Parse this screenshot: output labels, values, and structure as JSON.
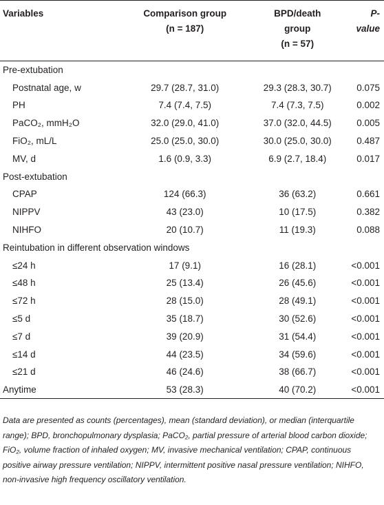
{
  "table": {
    "header": [
      [
        "Variables"
      ],
      [
        "Comparison group",
        "(n = 187)"
      ],
      [
        "BPD/death",
        "group",
        "(n = 57)"
      ],
      [
        "P-value"
      ]
    ],
    "groups": [
      {
        "title": "Pre-extubation",
        "rows": [
          [
            "Postnatal age, w",
            "29.7 (28.7, 31.0)",
            "29.3 (28.3, 30.7)",
            "0.075"
          ],
          [
            "PH",
            "7.4 (7.4, 7.5)",
            "7.4 (7.3, 7.5)",
            "0.002"
          ],
          [
            "PaCO₂, mmH₂O",
            "32.0 (29.0, 41.0)",
            "37.0 (32.0, 44.5)",
            "0.005"
          ],
          [
            "FiO₂, mL/L",
            "25.0 (25.0, 30.0)",
            "30.0 (25.0, 30.0)",
            "0.487"
          ],
          [
            "MV, d",
            "1.6 (0.9, 3.3)",
            "6.9 (2.7, 18.4)",
            "0.017"
          ]
        ]
      },
      {
        "title": "Post-extubation",
        "rows": [
          [
            "CPAP",
            "124 (66.3)",
            "36 (63.2)",
            "0.661"
          ],
          [
            "NIPPV",
            "43 (23.0)",
            "10 (17.5)",
            "0.382"
          ],
          [
            "NIHFO",
            "20 (10.7)",
            "11 (19.3)",
            "0.088"
          ]
        ]
      },
      {
        "title": "Reintubation in different observation windows",
        "rows": [
          [
            "≤24 h",
            "17 (9.1)",
            "16 (28.1)",
            "<0.001"
          ],
          [
            "≤48 h",
            "25 (13.4)",
            "26 (45.6)",
            "<0.001"
          ],
          [
            "≤72 h",
            "28 (15.0)",
            "28 (49.1)",
            "<0.001"
          ],
          [
            "≤5 d",
            "35 (18.7)",
            "30 (52.6)",
            "<0.001"
          ],
          [
            "≤7 d",
            "39 (20.9)",
            "31 (54.4)",
            "<0.001"
          ],
          [
            "≤14 d",
            "44 (23.5)",
            "34 (59.6)",
            "<0.001"
          ],
          [
            "≤21 d",
            "46 (24.6)",
            "38 (66.7)",
            "<0.001"
          ]
        ]
      }
    ],
    "summary_row": [
      "Anytime",
      "53 (28.3)",
      "40 (70.2)",
      "<0.001"
    ],
    "note": "Data are presented as counts (percentages), mean (standard deviation), or median (interquartile range); BPD, bronchopulmonary dysplasia; PaCO₂, partial pressure of arterial blood carbon dioxide; FiO₂, volume fraction of inhaled oxygen; MV, invasive mechanical ventilation; CPAP, continuous positive airway pressure ventilation; NIPPV, intermittent positive nasal pressure ventilation; NIHFO, non-invasive high frequency oscillatory ventilation."
  }
}
